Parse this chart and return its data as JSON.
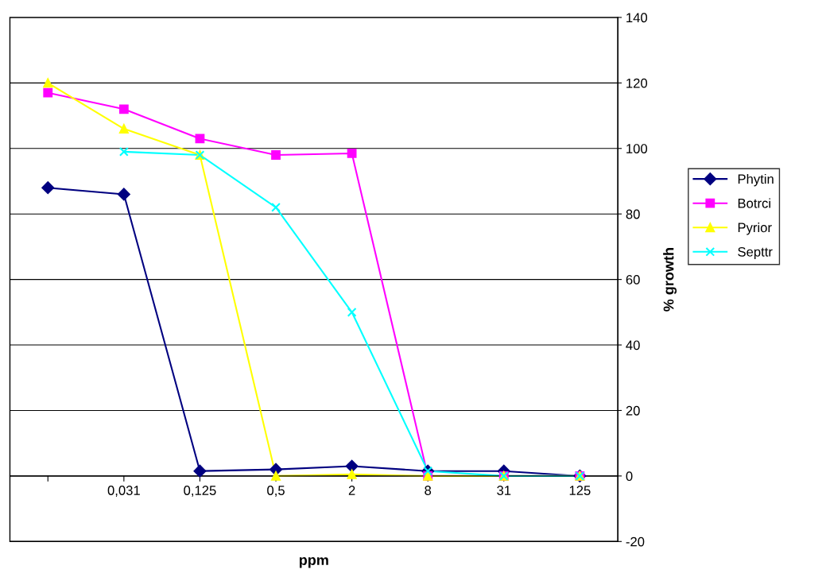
{
  "chart_data": {
    "type": "line",
    "xlabel": "ppm",
    "ylabel": "% growth",
    "categories": [
      null,
      "0,031",
      "0,125",
      "0,5",
      "2",
      "8",
      "31",
      "125"
    ],
    "ylim": [
      -20,
      140
    ],
    "yticks": [
      -20,
      0,
      20,
      40,
      60,
      80,
      100,
      120,
      140
    ],
    "grid": "y",
    "legend": "right",
    "line_style": "solid",
    "series": [
      {
        "name": "Phytin",
        "color": "#000080",
        "marker": "diamond",
        "values": [
          88,
          86,
          1.5,
          2,
          3,
          1.5,
          1.5,
          0
        ]
      },
      {
        "name": "Botrci",
        "color": "#ff00ff",
        "marker": "square",
        "values": [
          117,
          112,
          103,
          98,
          98.5,
          0,
          0,
          0
        ]
      },
      {
        "name": "Pyrior",
        "color": "#ffff00",
        "marker": "triangle",
        "values": [
          120,
          106,
          98,
          0,
          0.5,
          0,
          0,
          0
        ]
      },
      {
        "name": "Septtr",
        "color": "#00ffff",
        "marker": "cross",
        "values": [
          null,
          99,
          98,
          82,
          50,
          1.5,
          0,
          0
        ]
      }
    ]
  }
}
